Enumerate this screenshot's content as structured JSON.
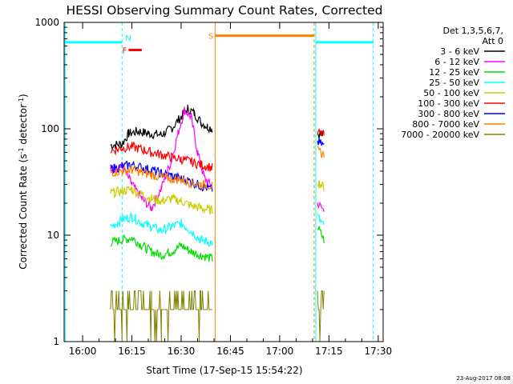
{
  "chart_data": {
    "type": "line",
    "title": "HESSI Observing Summary Count Rates, Corrected",
    "xlabel": "Start Time (17-Sep-15 15:54:22)",
    "ylabel": "Corrected Count Rate (s⁻¹ detector⁻¹)",
    "ylabel_main": "Corrected Count Rate (s",
    "ylabel_sup1": "-1",
    "ylabel_mid": " detector",
    "ylabel_sup2": "-1",
    "ylabel_end": ")",
    "y_scale": "log",
    "ylim": [
      1,
      1000
    ],
    "xlim": [
      "15:54:22",
      "17:31:30"
    ],
    "x_ticks": [
      "16:00",
      "16:15",
      "16:30",
      "16:45",
      "17:00",
      "17:15",
      "17:30"
    ],
    "x_tick_minutes": [
      0,
      15,
      30,
      45,
      60,
      75,
      90
    ],
    "y_ticks": [
      "1",
      "10",
      "100",
      "1000"
    ],
    "y_tick_values": [
      1,
      10,
      100,
      1000
    ],
    "footer_date": "23-Aug-2017 08:08",
    "legend": {
      "placement": "right",
      "header": [
        "Det 1,3,5,6,7,",
        "Att 0"
      ],
      "entries": [
        {
          "label": "3 - 6 keV",
          "color": "#000000"
        },
        {
          "label": "6 - 12 keV",
          "color": "#ff00ff"
        },
        {
          "label": "12 - 25 keV",
          "color": "#00dd00"
        },
        {
          "label": "25 - 50 keV",
          "color": "#00ffff"
        },
        {
          "label": "50 - 100 keV",
          "color": "#cccc00"
        },
        {
          "label": "100 - 300 keV",
          "color": "#ff0000"
        },
        {
          "label": "300 - 800 keV",
          "color": "#0000ff"
        },
        {
          "label": "800 - 7000 keV",
          "color": "#ff8000"
        },
        {
          "label": "7000 - 20000 keV",
          "color": "#808000"
        }
      ]
    },
    "orbit_flags": [
      {
        "label": "",
        "color": "#00ffff",
        "start": "15:54:22",
        "end": "16:12:00",
        "value": 650
      },
      {
        "label": "N",
        "color": "#00ffff",
        "start": "16:12:00",
        "end": "16:12:00",
        "value": 650
      },
      {
        "label": "F",
        "color": "#ff0000",
        "start": "16:14:00",
        "end": "16:18:00",
        "value": 550
      },
      {
        "label": "S",
        "color": "#ff8000",
        "start": "16:40:20",
        "end": "17:10:40",
        "value": 750
      },
      {
        "label": "",
        "color": "#00ffff",
        "start": "17:11:00",
        "end": "17:28:30",
        "value": 650
      }
    ],
    "vertical_markers": [
      {
        "time": "15:54:40",
        "color": "#00ffff",
        "style": "solid"
      },
      {
        "time": "16:12:00",
        "color": "#00ffff",
        "style": "dashed"
      },
      {
        "time": "16:40:20",
        "color": "#ff8000",
        "style": "solid"
      },
      {
        "time": "17:10:30",
        "color": "#ff8000",
        "style": "dashed"
      },
      {
        "time": "17:11:00",
        "color": "#00ffff",
        "style": "solid"
      },
      {
        "time": "17:28:30",
        "color": "#00ffff",
        "style": "dashed"
      }
    ],
    "series": [
      {
        "name": "3 - 6 keV",
        "color": "#000000",
        "segments": [
          [
            [
              "16:08:30",
              70
            ],
            [
              "16:12:00",
              72
            ],
            [
              "16:14:00",
              90
            ],
            [
              "16:17:00",
              95
            ],
            [
              "16:20:00",
              90
            ],
            [
              "16:24:00",
              88
            ],
            [
              "16:27:00",
              100
            ],
            [
              "16:30:00",
              130
            ],
            [
              "16:32:00",
              155
            ],
            [
              "16:34:00",
              140
            ],
            [
              "16:36:00",
              115
            ],
            [
              "16:38:00",
              105
            ],
            [
              "16:39:30",
              100
            ]
          ],
          [
            [
              "17:11:30",
              90
            ],
            [
              "17:13:30",
              88
            ]
          ]
        ]
      },
      {
        "name": "6 - 12 keV",
        "color": "#ff00ff",
        "segments": [
          [
            [
              "16:08:30",
              42
            ],
            [
              "16:12:00",
              45
            ],
            [
              "16:15:00",
              30
            ],
            [
              "16:18:00",
              22
            ],
            [
              "16:21:00",
              18
            ],
            [
              "16:24:00",
              28
            ],
            [
              "16:27:00",
              50
            ],
            [
              "16:29:00",
              90
            ],
            [
              "16:31:00",
              150
            ],
            [
              "16:33:00",
              130
            ],
            [
              "16:35:00",
              60
            ],
            [
              "16:37:00",
              35
            ],
            [
              "16:39:30",
              28
            ]
          ],
          [
            [
              "17:11:30",
              20
            ],
            [
              "17:13:30",
              17
            ]
          ]
        ]
      },
      {
        "name": "12 - 25 keV",
        "color": "#00dd00",
        "segments": [
          [
            [
              "16:08:30",
              8.5
            ],
            [
              "16:12:00",
              9
            ],
            [
              "16:15:00",
              9.5
            ],
            [
              "16:18:00",
              8
            ],
            [
              "16:21:00",
              7
            ],
            [
              "16:24:00",
              6.5
            ],
            [
              "16:27:00",
              7
            ],
            [
              "16:30:00",
              8
            ],
            [
              "16:33:00",
              7
            ],
            [
              "16:36:00",
              6.5
            ],
            [
              "16:39:30",
              6
            ]
          ],
          [
            [
              "17:11:30",
              12
            ],
            [
              "17:13:30",
              9
            ]
          ]
        ]
      },
      {
        "name": "25 - 50 keV",
        "color": "#00ffff",
        "segments": [
          [
            [
              "16:08:30",
              12
            ],
            [
              "16:12:00",
              14
            ],
            [
              "16:15:00",
              15
            ],
            [
              "16:18:00",
              13
            ],
            [
              "16:21:00",
              12
            ],
            [
              "16:24:00",
              11
            ],
            [
              "16:27:00",
              12
            ],
            [
              "16:30:00",
              13
            ],
            [
              "16:33:00",
              11
            ],
            [
              "16:36:00",
              9
            ],
            [
              "16:39:30",
              8.5
            ]
          ],
          [
            [
              "17:11:30",
              15
            ],
            [
              "17:13:30",
              12
            ]
          ]
        ]
      },
      {
        "name": "50 - 100 keV",
        "color": "#cccc00",
        "segments": [
          [
            [
              "16:08:30",
              25
            ],
            [
              "16:12:00",
              26
            ],
            [
              "16:15:00",
              27
            ],
            [
              "16:18:00",
              24
            ],
            [
              "16:21:00",
              22
            ],
            [
              "16:24:00",
              21
            ],
            [
              "16:27:00",
              22
            ],
            [
              "16:30:00",
              21
            ],
            [
              "16:33:00",
              19
            ],
            [
              "16:36:00",
              18
            ],
            [
              "16:39:30",
              17
            ]
          ],
          [
            [
              "17:11:30",
              32
            ],
            [
              "17:13:30",
              28
            ]
          ]
        ]
      },
      {
        "name": "100 - 300 keV",
        "color": "#ff0000",
        "segments": [
          [
            [
              "16:08:30",
              62
            ],
            [
              "16:12:00",
              66
            ],
            [
              "16:15:00",
              68
            ],
            [
              "16:18:00",
              64
            ],
            [
              "16:21:00",
              60
            ],
            [
              "16:24:00",
              57
            ],
            [
              "16:27:00",
              54
            ],
            [
              "16:30:00",
              52
            ],
            [
              "16:33:00",
              49
            ],
            [
              "16:36:00",
              46
            ],
            [
              "16:39:30",
              43
            ]
          ],
          [
            [
              "17:11:30",
              92
            ],
            [
              "17:13:30",
              88
            ]
          ]
        ]
      },
      {
        "name": "300 - 800 keV",
        "color": "#0000ff",
        "segments": [
          [
            [
              "16:08:30",
              42
            ],
            [
              "16:12:00",
              44
            ],
            [
              "16:15:00",
              46
            ],
            [
              "16:18:00",
              43
            ],
            [
              "16:21:00",
              41
            ],
            [
              "16:24:00",
              38
            ],
            [
              "16:27:00",
              36
            ],
            [
              "16:30:00",
              34
            ],
            [
              "16:33:00",
              32
            ],
            [
              "16:36:00",
              29
            ],
            [
              "16:39:30",
              27
            ]
          ],
          [
            [
              "17:11:30",
              75
            ],
            [
              "17:13:30",
              70
            ]
          ]
        ]
      },
      {
        "name": "800 - 7000 keV",
        "color": "#ff8000",
        "segments": [
          [
            [
              "16:08:30",
              39
            ],
            [
              "16:12:00",
              40
            ],
            [
              "16:15:00",
              41
            ],
            [
              "16:18:00",
              39
            ],
            [
              "16:21:00",
              37
            ],
            [
              "16:24:00",
              35
            ],
            [
              "16:27:00",
              34
            ],
            [
              "16:30:00",
              33
            ],
            [
              "16:33:00",
              31
            ],
            [
              "16:36:00",
              30
            ],
            [
              "16:39:30",
              29
            ]
          ],
          [
            [
              "17:11:30",
              62
            ],
            [
              "17:13:30",
              57
            ]
          ]
        ]
      },
      {
        "name": "7000 - 20000 keV",
        "color": "#808000",
        "segments": [
          [
            [
              "16:08:30",
              2
            ],
            [
              "16:12:00",
              2
            ],
            [
              "16:15:00",
              2
            ],
            [
              "16:18:00",
              2
            ],
            [
              "16:21:00",
              2
            ],
            [
              "16:24:00",
              2
            ],
            [
              "16:27:00",
              2
            ],
            [
              "16:30:00",
              2
            ],
            [
              "16:33:00",
              2
            ],
            [
              "16:36:00",
              2
            ],
            [
              "16:39:30",
              2
            ]
          ],
          [
            [
              "17:11:30",
              2
            ],
            [
              "17:13:30",
              2
            ]
          ]
        ]
      }
    ]
  }
}
